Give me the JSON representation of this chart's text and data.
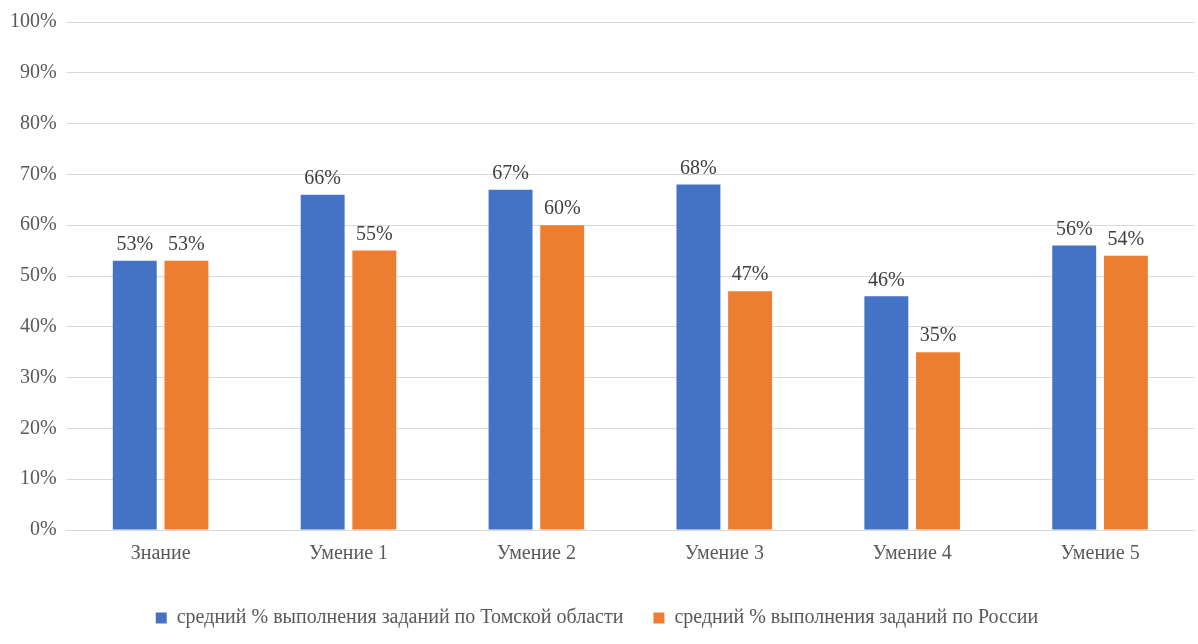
{
  "chart_data": {
    "type": "bar",
    "categories": [
      "Знание",
      "Умение 1",
      "Умение 2",
      "Умение 3",
      "Умение 4",
      "Умение 5"
    ],
    "series": [
      {
        "name": "средний % выполнения заданий по Томской области",
        "color": "#4472c4",
        "values": [
          53,
          66,
          67,
          68,
          46,
          56
        ],
        "value_labels": [
          "53%",
          "66%",
          "67%",
          "68%",
          "46%",
          "56%"
        ]
      },
      {
        "name": "средний % выполнения заданий по России",
        "color": "#ed7d31",
        "values": [
          53,
          55,
          60,
          47,
          35,
          54
        ],
        "value_labels": [
          "53%",
          "55%",
          "60%",
          "47%",
          "35%",
          "54%"
        ]
      }
    ],
    "ylim": [
      0,
      100
    ],
    "yticks": [
      {
        "value": 0,
        "label": "0%"
      },
      {
        "value": 10,
        "label": "10%"
      },
      {
        "value": 20,
        "label": "20%"
      },
      {
        "value": 30,
        "label": "30%"
      },
      {
        "value": 40,
        "label": "40%"
      },
      {
        "value": 50,
        "label": "50%"
      },
      {
        "value": 60,
        "label": "60%"
      },
      {
        "value": 70,
        "label": "70%"
      },
      {
        "value": 80,
        "label": "80%"
      },
      {
        "value": 90,
        "label": "90%"
      },
      {
        "value": 100,
        "label": "100%"
      }
    ],
    "grid": "y",
    "legend": "bottom"
  }
}
